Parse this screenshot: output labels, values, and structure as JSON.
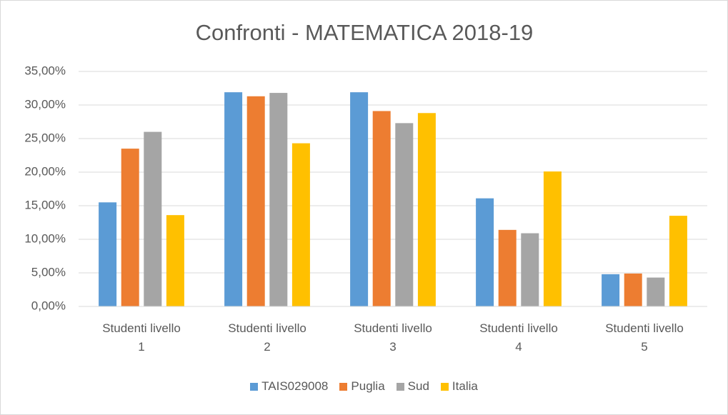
{
  "chart_data": {
    "type": "bar",
    "title": "Confronti - MATEMATICA 2018-19",
    "categories": [
      "Studenti livello 1",
      "Studenti livello 2",
      "Studenti livello 3",
      "Studenti livello 4",
      "Studenti livello 5"
    ],
    "series": [
      {
        "name": "TAIS029008",
        "color": "#5b9bd5",
        "values": [
          15.5,
          31.9,
          31.9,
          16.1,
          4.8
        ]
      },
      {
        "name": "Puglia",
        "color": "#ed7d31",
        "values": [
          23.5,
          31.3,
          29.1,
          11.4,
          4.9
        ]
      },
      {
        "name": "Sud",
        "color": "#a5a5a5",
        "values": [
          26.0,
          31.8,
          27.3,
          10.9,
          4.3
        ]
      },
      {
        "name": "Italia",
        "color": "#ffc000",
        "values": [
          13.6,
          24.3,
          28.8,
          20.1,
          13.5
        ]
      }
    ],
    "ylim": [
      0,
      35
    ],
    "yticks": [
      {
        "value": 0,
        "label": "0,00%"
      },
      {
        "value": 5,
        "label": "5,00%"
      },
      {
        "value": 10,
        "label": "10,00%"
      },
      {
        "value": 15,
        "label": "15,00%"
      },
      {
        "value": 20,
        "label": "20,00%"
      },
      {
        "value": 25,
        "label": "25,00%"
      },
      {
        "value": 30,
        "label": "30,00%"
      },
      {
        "value": 35,
        "label": "35,00%"
      }
    ],
    "grid": true,
    "legend": "bottom"
  }
}
